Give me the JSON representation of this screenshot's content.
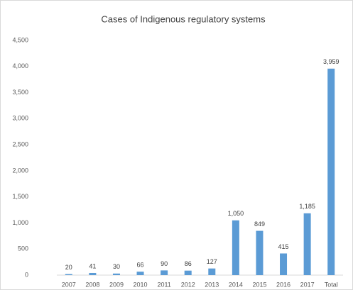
{
  "chart_data": {
    "type": "bar",
    "title": "Cases of Indigenous regulatory systems",
    "categories": [
      "2007",
      "2008",
      "2009",
      "2010",
      "2011",
      "2012",
      "2013",
      "2014",
      "2015",
      "2016",
      "2017",
      "Total"
    ],
    "values": [
      20,
      41,
      30,
      66,
      90,
      86,
      127,
      1050,
      849,
      415,
      1185,
      3959
    ],
    "value_labels": [
      "20",
      "41",
      "30",
      "66",
      "90",
      "86",
      "127",
      "1,050",
      "849",
      "415",
      "1,185",
      "3,959"
    ],
    "color": "#5b9bd5",
    "ylim": [
      0,
      4500
    ],
    "yticks": [
      0,
      500,
      {
        "value": 1000,
        "label": "1,000"
      },
      {
        "value": 1500,
        "label": "1,500"
      },
      {
        "value": 2000,
        "label": "2,000"
      },
      {
        "value": 2500,
        "label": "2,500"
      },
      {
        "value": 3000,
        "label": "3,000"
      },
      {
        "value": 3500,
        "label": "3,500"
      },
      {
        "value": 4000,
        "label": "4,000"
      },
      {
        "value": 4500,
        "label": "4,500"
      }
    ],
    "grid": false
  }
}
